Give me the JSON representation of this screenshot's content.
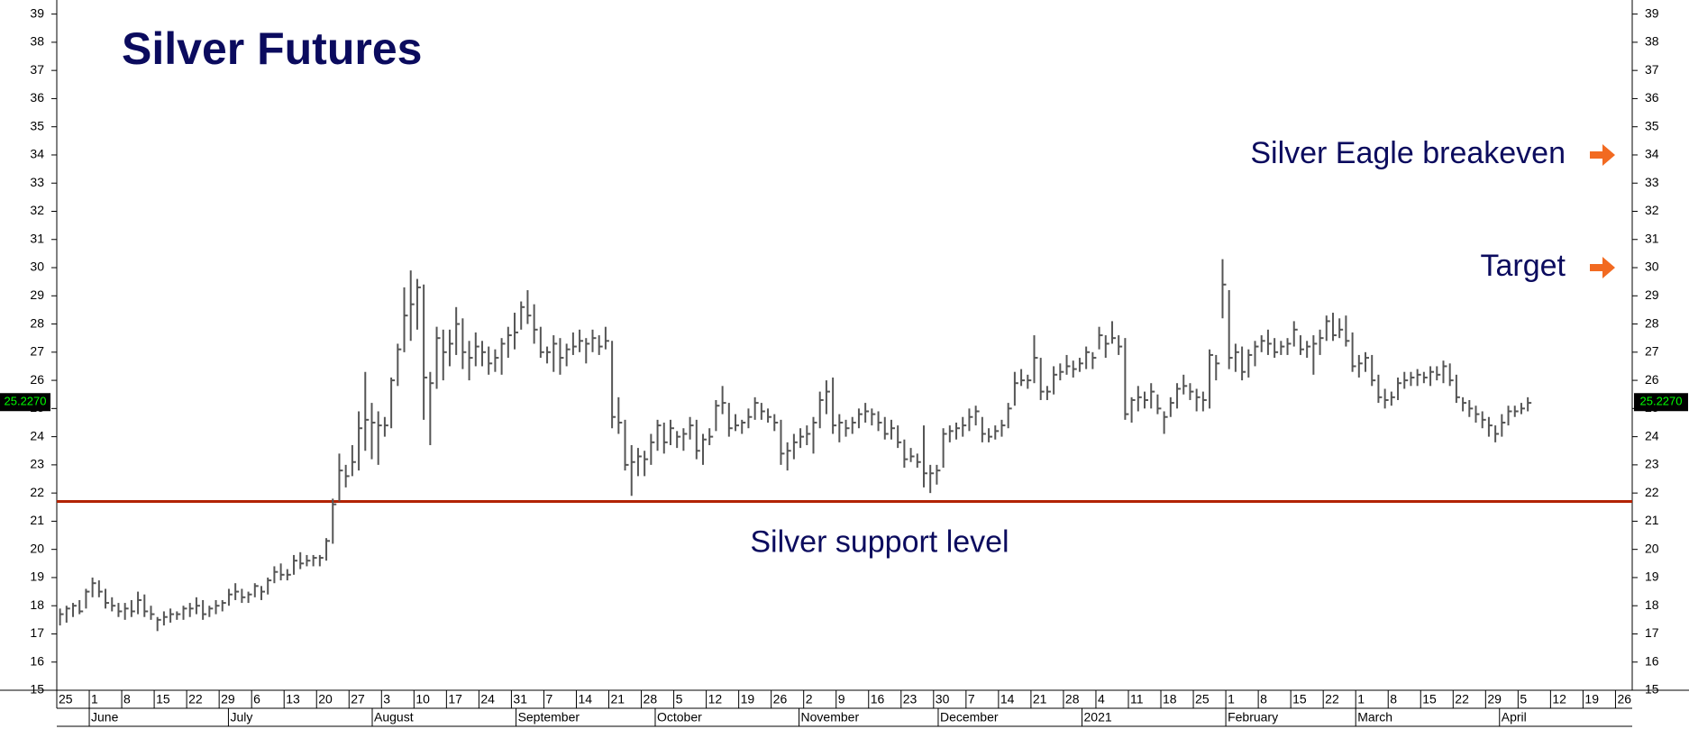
{
  "chart_data": {
    "type": "ohlc",
    "title": "Silver Futures",
    "color": "#555555",
    "ylim": [
      15,
      39.5
    ],
    "yticks": [
      15,
      16,
      17,
      18,
      19,
      20,
      21,
      22,
      23,
      24,
      25,
      26,
      27,
      28,
      29,
      30,
      31,
      32,
      33,
      34,
      35,
      36,
      37,
      38,
      39
    ],
    "categories": [
      "25",
      "1",
      "8",
      "15",
      "22",
      "29",
      "6",
      "13",
      "20",
      "27",
      "3",
      "10",
      "17",
      "24",
      "31",
      "7",
      "14",
      "21",
      "28",
      "5",
      "12",
      "19",
      "26",
      "2",
      "9",
      "16",
      "23",
      "30",
      "7",
      "14",
      "21",
      "28",
      "4",
      "11",
      "18",
      "25",
      "1",
      "8",
      "15",
      "22",
      "1",
      "8",
      "15",
      "22",
      "29",
      "5",
      "12",
      "19",
      "26"
    ],
    "months": [
      "June",
      "July",
      "August",
      "September",
      "October",
      "November",
      "December",
      "2021",
      "February",
      "March",
      "April"
    ],
    "last_price": {
      "value": 25.227,
      "label": "25.2270"
    },
    "support": {
      "value": 21.7,
      "label": "Silver support level",
      "color": "#b22200"
    },
    "annotations": [
      {
        "label": "Silver Eagle breakeven",
        "value": 34
      },
      {
        "label": "Target",
        "value": 30
      }
    ],
    "arrow_color": "#f26a21",
    "bars": [
      [
        17.9,
        17.3,
        17.7
      ],
      [
        18.0,
        17.4,
        17.9
      ],
      [
        18.1,
        17.6,
        18.0
      ],
      [
        18.2,
        17.7,
        17.8
      ],
      [
        18.6,
        17.9,
        18.5
      ],
      [
        19.0,
        18.3,
        18.8
      ],
      [
        18.9,
        18.3,
        18.5
      ],
      [
        18.6,
        17.9,
        18.1
      ],
      [
        18.3,
        17.8,
        18.0
      ],
      [
        18.1,
        17.6,
        17.8
      ],
      [
        18.1,
        17.5,
        17.9
      ],
      [
        18.2,
        17.6,
        17.8
      ],
      [
        18.5,
        17.7,
        18.2
      ],
      [
        18.4,
        17.6,
        17.8
      ],
      [
        18.0,
        17.5,
        17.7
      ],
      [
        17.6,
        17.1,
        17.5
      ],
      [
        17.8,
        17.3,
        17.6
      ],
      [
        17.9,
        17.4,
        17.7
      ],
      [
        17.8,
        17.5,
        17.7
      ],
      [
        18.0,
        17.5,
        17.9
      ],
      [
        18.1,
        17.6,
        17.9
      ],
      [
        18.3,
        17.7,
        18.0
      ],
      [
        18.2,
        17.5,
        17.7
      ],
      [
        18.0,
        17.6,
        17.9
      ],
      [
        18.2,
        17.7,
        18.0
      ],
      [
        18.2,
        17.8,
        18.1
      ],
      [
        18.6,
        18.0,
        18.4
      ],
      [
        18.8,
        18.2,
        18.5
      ],
      [
        18.6,
        18.1,
        18.3
      ],
      [
        18.5,
        18.1,
        18.4
      ],
      [
        18.8,
        18.3,
        18.7
      ],
      [
        18.7,
        18.2,
        18.5
      ],
      [
        19.0,
        18.4,
        18.9
      ],
      [
        19.4,
        18.8,
        19.2
      ],
      [
        19.5,
        18.9,
        19.1
      ],
      [
        19.3,
        18.9,
        19.1
      ],
      [
        19.8,
        19.1,
        19.6
      ],
      [
        19.9,
        19.3,
        19.5
      ],
      [
        19.8,
        19.4,
        19.6
      ],
      [
        19.8,
        19.4,
        19.7
      ],
      [
        19.8,
        19.4,
        19.7
      ],
      [
        20.4,
        19.6,
        20.3
      ],
      [
        21.8,
        20.2,
        21.6
      ],
      [
        23.4,
        21.7,
        22.8
      ],
      [
        23.0,
        22.2,
        22.6
      ],
      [
        23.7,
        22.6,
        23.1
      ],
      [
        24.9,
        22.8,
        24.3
      ],
      [
        26.3,
        23.5,
        24.6
      ],
      [
        25.2,
        23.2,
        24.5
      ],
      [
        24.9,
        23.0,
        24.4
      ],
      [
        24.7,
        24.0,
        24.4
      ],
      [
        26.1,
        24.3,
        26.0
      ],
      [
        27.3,
        25.8,
        27.1
      ],
      [
        29.3,
        27.0,
        28.3
      ],
      [
        29.9,
        27.4,
        28.7
      ],
      [
        29.6,
        27.8,
        29.3
      ],
      [
        29.4,
        24.6,
        26.1
      ],
      [
        26.3,
        23.7,
        25.9
      ],
      [
        27.9,
        25.7,
        27.5
      ],
      [
        27.8,
        26.0,
        27.0
      ],
      [
        27.8,
        26.5,
        27.3
      ],
      [
        28.6,
        26.9,
        28.0
      ],
      [
        28.2,
        26.4,
        27.0
      ],
      [
        27.4,
        26.0,
        26.8
      ],
      [
        27.7,
        26.5,
        27.2
      ],
      [
        27.4,
        26.5,
        27.0
      ],
      [
        27.2,
        26.2,
        26.6
      ],
      [
        27.1,
        26.3,
        26.8
      ],
      [
        27.5,
        26.2,
        27.3
      ],
      [
        27.9,
        26.8,
        27.6
      ],
      [
        28.4,
        27.1,
        27.7
      ],
      [
        28.8,
        27.8,
        28.6
      ],
      [
        29.2,
        28.0,
        28.3
      ],
      [
        28.7,
        27.3,
        27.8
      ],
      [
        27.9,
        26.8,
        27.0
      ],
      [
        27.2,
        26.6,
        27.0
      ],
      [
        27.6,
        26.3,
        27.3
      ],
      [
        27.5,
        26.2,
        26.8
      ],
      [
        27.3,
        26.5,
        27.1
      ],
      [
        27.7,
        26.9,
        27.2
      ],
      [
        27.8,
        27.0,
        27.4
      ],
      [
        27.5,
        26.6,
        27.3
      ],
      [
        27.8,
        27.0,
        27.5
      ],
      [
        27.6,
        26.9,
        27.2
      ],
      [
        27.9,
        27.1,
        27.4
      ],
      [
        27.4,
        24.3,
        24.7
      ],
      [
        25.4,
        24.1,
        24.5
      ],
      [
        24.6,
        22.8,
        23.0
      ],
      [
        23.7,
        21.9,
        23.1
      ],
      [
        23.6,
        22.6,
        23.3
      ],
      [
        23.5,
        22.6,
        23.2
      ],
      [
        24.1,
        23.0,
        23.8
      ],
      [
        24.6,
        23.5,
        24.4
      ],
      [
        24.5,
        23.4,
        23.8
      ],
      [
        24.6,
        23.7,
        24.3
      ],
      [
        24.2,
        23.6,
        24.0
      ],
      [
        24.3,
        23.5,
        24.1
      ],
      [
        24.7,
        23.9,
        24.4
      ],
      [
        24.6,
        23.2,
        23.5
      ],
      [
        24.1,
        23.0,
        23.9
      ],
      [
        24.3,
        23.7,
        24.0
      ],
      [
        25.3,
        24.2,
        25.1
      ],
      [
        25.8,
        24.8,
        25.2
      ],
      [
        25.2,
        24.0,
        24.3
      ],
      [
        24.8,
        24.2,
        24.4
      ],
      [
        24.6,
        24.1,
        24.5
      ],
      [
        25.0,
        24.3,
        24.7
      ],
      [
        25.4,
        24.6,
        25.2
      ],
      [
        25.2,
        24.6,
        24.9
      ],
      [
        25.0,
        24.5,
        24.7
      ],
      [
        24.8,
        24.2,
        24.5
      ],
      [
        24.6,
        23.0,
        23.4
      ],
      [
        23.8,
        22.8,
        23.5
      ],
      [
        24.1,
        23.2,
        23.8
      ],
      [
        24.3,
        23.6,
        24.0
      ],
      [
        24.4,
        23.7,
        24.1
      ],
      [
        24.7,
        23.4,
        24.5
      ],
      [
        25.6,
        24.3,
        25.3
      ],
      [
        26.0,
        24.8,
        25.6
      ],
      [
        26.1,
        24.1,
        24.4
      ],
      [
        24.8,
        23.8,
        24.5
      ],
      [
        24.6,
        24.0,
        24.3
      ],
      [
        24.7,
        24.1,
        24.5
      ],
      [
        25.0,
        24.3,
        24.8
      ],
      [
        25.2,
        24.5,
        24.9
      ],
      [
        25.0,
        24.4,
        24.8
      ],
      [
        24.9,
        24.2,
        24.5
      ],
      [
        24.7,
        23.9,
        24.1
      ],
      [
        24.6,
        23.9,
        24.3
      ],
      [
        24.4,
        23.6,
        23.8
      ],
      [
        23.9,
        22.9,
        23.2
      ],
      [
        23.6,
        23.1,
        23.3
      ],
      [
        23.4,
        22.9,
        23.1
      ],
      [
        24.4,
        22.2,
        22.7
      ],
      [
        23.0,
        22.0,
        22.7
      ],
      [
        23.0,
        22.3,
        22.8
      ],
      [
        24.3,
        22.9,
        24.1
      ],
      [
        24.4,
        23.8,
        24.2
      ],
      [
        24.5,
        23.9,
        24.3
      ],
      [
        24.7,
        24.0,
        24.4
      ],
      [
        25.0,
        24.2,
        24.7
      ],
      [
        25.1,
        24.4,
        24.9
      ],
      [
        24.7,
        23.8,
        24.1
      ],
      [
        24.3,
        23.8,
        24.0
      ],
      [
        24.4,
        23.9,
        24.2
      ],
      [
        24.6,
        24.0,
        24.4
      ],
      [
        25.2,
        24.3,
        25.0
      ],
      [
        26.3,
        25.1,
        25.9
      ],
      [
        26.4,
        25.8,
        26.0
      ],
      [
        26.2,
        25.7,
        26.0
      ],
      [
        27.6,
        25.9,
        26.8
      ],
      [
        26.8,
        25.3,
        25.6
      ],
      [
        25.8,
        25.3,
        25.6
      ],
      [
        26.5,
        25.5,
        26.2
      ],
      [
        26.6,
        26.0,
        26.3
      ],
      [
        26.9,
        26.2,
        26.5
      ],
      [
        26.7,
        26.1,
        26.4
      ],
      [
        26.8,
        26.3,
        26.6
      ],
      [
        27.2,
        26.4,
        27.0
      ],
      [
        27.0,
        26.4,
        26.8
      ],
      [
        27.9,
        27.1,
        27.6
      ],
      [
        27.6,
        26.8,
        27.3
      ],
      [
        28.1,
        27.3,
        27.5
      ],
      [
        27.6,
        26.9,
        27.2
      ],
      [
        27.5,
        24.6,
        24.8
      ],
      [
        25.4,
        24.5,
        25.3
      ],
      [
        25.8,
        24.9,
        25.4
      ],
      [
        25.6,
        25.0,
        25.3
      ],
      [
        25.9,
        25.0,
        25.6
      ],
      [
        25.5,
        24.8,
        25.0
      ],
      [
        24.9,
        24.1,
        24.7
      ],
      [
        25.4,
        24.7,
        25.2
      ],
      [
        25.9,
        25.0,
        25.7
      ],
      [
        26.2,
        25.5,
        25.8
      ],
      [
        25.9,
        25.3,
        25.6
      ],
      [
        25.7,
        24.9,
        25.4
      ],
      [
        25.6,
        24.9,
        25.3
      ],
      [
        27.1,
        25.0,
        26.9
      ],
      [
        26.9,
        26.0,
        26.6
      ],
      [
        30.3,
        28.2,
        29.4
      ],
      [
        29.2,
        26.4,
        26.8
      ],
      [
        27.3,
        26.3,
        27.0
      ],
      [
        27.2,
        26.0,
        26.3
      ],
      [
        27.1,
        26.1,
        26.9
      ],
      [
        27.4,
        26.5,
        27.2
      ],
      [
        27.6,
        27.0,
        27.4
      ],
      [
        27.8,
        26.9,
        27.3
      ],
      [
        27.5,
        26.8,
        27.0
      ],
      [
        27.4,
        26.9,
        27.2
      ],
      [
        27.5,
        26.9,
        27.3
      ],
      [
        28.1,
        27.2,
        27.8
      ],
      [
        27.6,
        26.9,
        27.1
      ],
      [
        27.4,
        26.8,
        27.2
      ],
      [
        27.6,
        26.2,
        27.3
      ],
      [
        27.8,
        26.9,
        27.5
      ],
      [
        28.3,
        27.4,
        28.1
      ],
      [
        28.4,
        27.4,
        27.6
      ],
      [
        28.2,
        27.5,
        27.8
      ],
      [
        28.3,
        27.2,
        27.4
      ],
      [
        27.7,
        26.3,
        26.5
      ],
      [
        26.9,
        26.1,
        26.6
      ],
      [
        27.0,
        26.3,
        26.8
      ],
      [
        26.9,
        25.8,
        26.0
      ],
      [
        26.2,
        25.2,
        25.4
      ],
      [
        25.7,
        25.0,
        25.3
      ],
      [
        25.6,
        25.1,
        25.4
      ],
      [
        26.1,
        25.3,
        25.9
      ],
      [
        26.3,
        25.7,
        26.0
      ],
      [
        26.3,
        25.8,
        26.1
      ],
      [
        26.4,
        25.8,
        26.2
      ],
      [
        26.3,
        25.9,
        26.1
      ],
      [
        26.5,
        25.8,
        26.3
      ],
      [
        26.5,
        26.0,
        26.2
      ],
      [
        26.7,
        25.9,
        26.5
      ],
      [
        26.6,
        25.8,
        26.0
      ],
      [
        26.2,
        25.2,
        25.4
      ],
      [
        25.4,
        24.9,
        25.2
      ],
      [
        25.3,
        24.7,
        25.0
      ],
      [
        25.1,
        24.5,
        24.8
      ],
      [
        24.9,
        24.3,
        24.6
      ],
      [
        24.7,
        24.0,
        24.4
      ],
      [
        24.4,
        23.8,
        24.1
      ],
      [
        24.8,
        24.0,
        24.5
      ],
      [
        25.1,
        24.4,
        24.9
      ],
      [
        25.1,
        24.7,
        24.9
      ],
      [
        25.2,
        24.8,
        25.0
      ],
      [
        25.4,
        24.9,
        25.2
      ]
    ]
  }
}
